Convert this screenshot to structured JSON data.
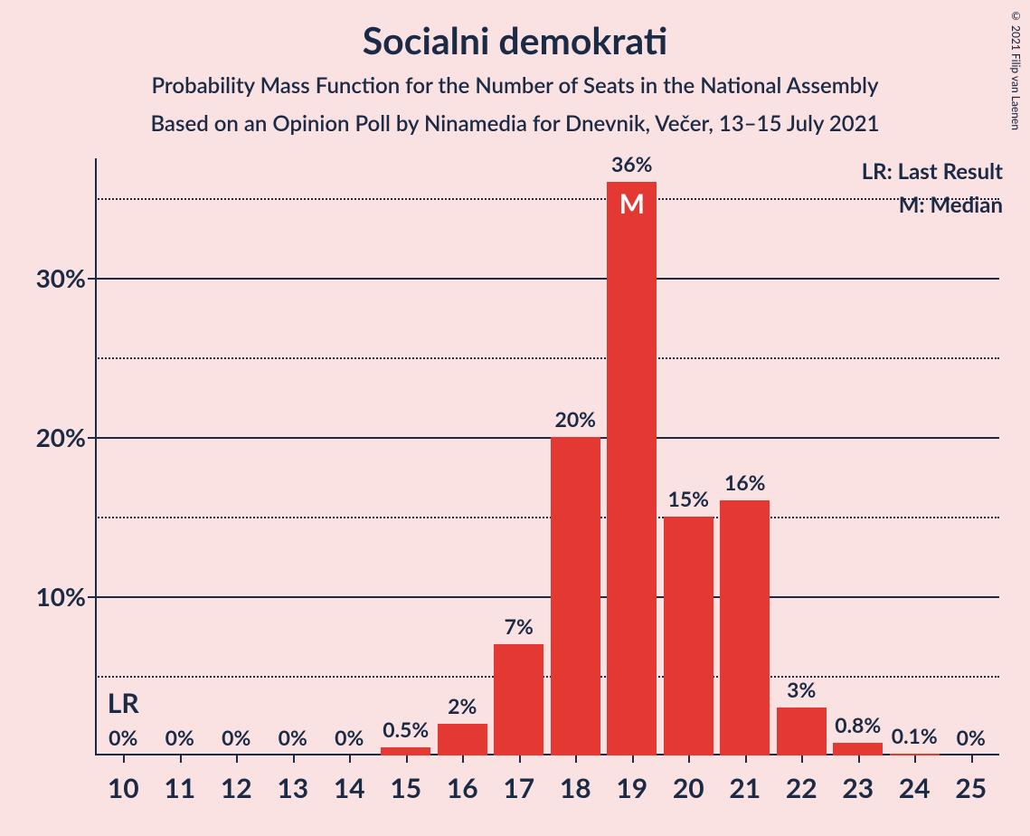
{
  "title": "Socialni demokrati",
  "subtitle1": "Probability Mass Function for the Number of Seats in the National Assembly",
  "subtitle2": "Based on an Opinion Poll by Ninamedia for Dnevnik, Večer, 13–15 July 2021",
  "copyright": "© 2021 Filip van Laenen",
  "legend": {
    "lr": "LR: Last Result",
    "m": "M: Median"
  },
  "lr_marker": "LR",
  "median_marker": "M",
  "chart": {
    "type": "bar",
    "bar_color": "#e43932",
    "background_color": "#fbe2e2",
    "text_color": "#1c2b45",
    "ylim": [
      0,
      37.5
    ],
    "y_major_ticks": [
      10,
      20,
      30
    ],
    "y_minor_ticks": [
      5,
      15,
      25,
      35
    ],
    "y_tick_labels": [
      "10%",
      "20%",
      "30%"
    ],
    "x_categories": [
      10,
      11,
      12,
      13,
      14,
      15,
      16,
      17,
      18,
      19,
      20,
      21,
      22,
      23,
      24,
      25
    ],
    "values": [
      0,
      0,
      0,
      0,
      0,
      0.5,
      2,
      7,
      20,
      36,
      15,
      16,
      3,
      0.8,
      0.1,
      0
    ],
    "value_labels": [
      "0%",
      "0%",
      "0%",
      "0%",
      "0%",
      "0.5%",
      "2%",
      "7%",
      "20%",
      "36%",
      "15%",
      "16%",
      "3%",
      "0.8%",
      "0.1%",
      "0%"
    ],
    "median_index": 9,
    "lr_index": 0,
    "bar_width_ratio": 0.88,
    "title_fontsize": 41,
    "subtitle_fontsize": 24,
    "axis_label_fontsize": 28,
    "bar_label_fontsize": 23,
    "x_tick_fontsize": 30
  }
}
